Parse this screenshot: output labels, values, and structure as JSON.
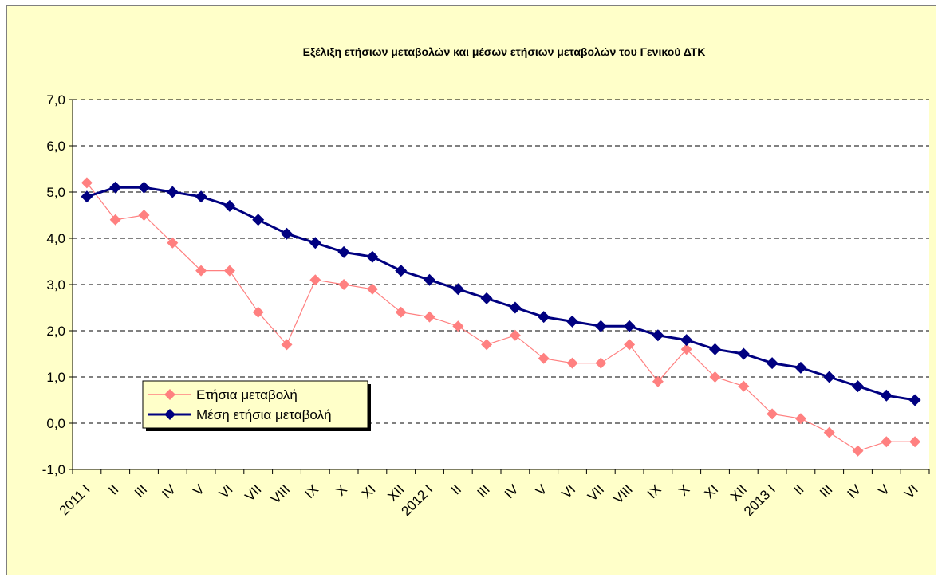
{
  "chart_data": {
    "type": "line",
    "title": "Εξέλιξη ετήσιων μεταβολών και μέσων ετήσιων μεταβολών του Γενικού ΔΤΚ",
    "xlabel": "",
    "ylabel": "",
    "ylim": [
      -1.0,
      7.0
    ],
    "ytick_step": 1.0,
    "y_tick_labels": [
      "-1,0",
      "0,0",
      "1,0",
      "2,0",
      "3,0",
      "4,0",
      "5,0",
      "6,0",
      "7,0"
    ],
    "grid": "horizontal dashed",
    "legend_position": "lower-left",
    "categories": [
      "2011 I",
      "II",
      "III",
      "IV",
      "V",
      "VI",
      "VII",
      "VIII",
      "IX",
      "X",
      "XI",
      "XII",
      "2012 I",
      "II",
      "III",
      "IV",
      "V",
      "VI",
      "VII",
      "VIII",
      "IX",
      "X",
      "XI",
      "XII",
      "2013 I",
      "II",
      "III",
      "IV",
      "V",
      "VI"
    ],
    "series": [
      {
        "name": "Ετήσια μεταβολή",
        "color": "#ff8080",
        "marker": "diamond",
        "values": [
          5.2,
          4.4,
          4.5,
          3.9,
          3.3,
          3.3,
          2.4,
          1.7,
          3.1,
          3.0,
          2.9,
          2.4,
          2.3,
          2.1,
          1.7,
          1.9,
          1.4,
          1.3,
          1.3,
          1.7,
          0.9,
          1.6,
          1.0,
          0.8,
          0.2,
          0.1,
          -0.2,
          -0.6,
          -0.4,
          -0.4
        ]
      },
      {
        "name": "Μέση ετήσια μεταβολή",
        "color": "#000080",
        "marker": "diamond",
        "values": [
          4.9,
          5.1,
          5.1,
          5.0,
          4.9,
          4.7,
          4.4,
          4.1,
          3.9,
          3.7,
          3.6,
          3.3,
          3.1,
          2.9,
          2.7,
          2.5,
          2.3,
          2.2,
          2.1,
          2.1,
          1.9,
          1.8,
          1.6,
          1.5,
          1.3,
          1.2,
          1.0,
          0.8,
          0.6,
          0.5
        ]
      }
    ],
    "colors": {
      "background": "#ffffc9",
      "plot_area": "#ffffff",
      "frame": "#7f7f7f"
    }
  }
}
